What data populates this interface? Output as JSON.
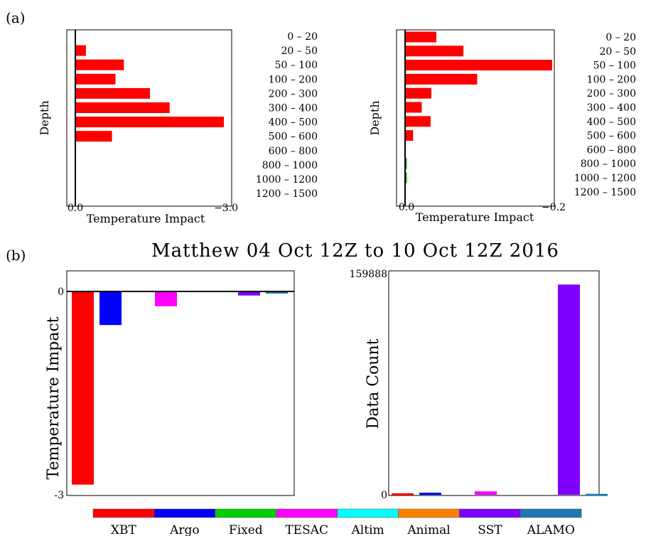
{
  "panel_labels": {
    "a": "(a)",
    "b": "(b)"
  },
  "title": "Matthew  04 Oct 12Z to 10 Oct 12Z 2016",
  "depth_bins": [
    "0 – 20",
    "20 – 50",
    "50 – 100",
    "100 – 200",
    "200 – 300",
    "300 – 400",
    "400 – 500",
    "500 – 600",
    "600 – 800",
    "800 – 1000",
    "1000 – 1200",
    "1200 – 1500"
  ],
  "colors": {
    "impact_bar": "#ff0000",
    "small_impact": "#00aa00",
    "XBT": "#ff0000",
    "Argo": "#0000ff",
    "Fixed": "#00cc00",
    "TESAC": "#ff00ff",
    "Altim": "#00ffff",
    "Animal": "#ff8000",
    "SST": "#8000ff",
    "ALAMO": "#1f77b4"
  },
  "legend": [
    "XBT",
    "Argo",
    "Fixed",
    "TESAC",
    "Altim",
    "Animal",
    "SST",
    "ALAMO"
  ],
  "chart_data": [
    {
      "type": "bar",
      "orientation": "horizontal",
      "ylabel": "Depth",
      "xlabel": "Temperature Impact",
      "xtick_labels": [
        "0.0",
        "−3.0"
      ],
      "xlim": [
        0.0,
        -3.0
      ],
      "categories": [
        "0 – 20",
        "20 – 50",
        "50 – 100",
        "100 – 200",
        "200 – 300",
        "300 – 400",
        "400 – 500",
        "500 – 600",
        "600 – 800",
        "800 – 1000",
        "1000 – 1200",
        "1200 – 1500"
      ],
      "values": [
        0.0,
        -0.2,
        -0.97,
        -0.8,
        -1.5,
        -1.9,
        -3.0,
        -0.73,
        0.0,
        0.0,
        0.0,
        0.0
      ]
    },
    {
      "type": "bar",
      "orientation": "horizontal",
      "ylabel": "Depth",
      "xlabel": "Temperature Impact",
      "xtick_labels": [
        "0.0",
        "−0.2"
      ],
      "xlim": [
        0.0,
        -0.2
      ],
      "categories": [
        "0 – 20",
        "20 – 50",
        "50 – 100",
        "100 – 200",
        "200 – 300",
        "300 – 400",
        "400 – 500",
        "500 – 600",
        "600 – 800",
        "800 – 1000",
        "1000 – 1200",
        "1200 – 1500"
      ],
      "values": [
        -0.042,
        -0.079,
        -0.201,
        -0.098,
        -0.035,
        -0.022,
        -0.034,
        -0.01,
        0.0,
        -0.001,
        -0.001,
        0.0
      ]
    },
    {
      "type": "bar",
      "ylabel": "Temperature Impact",
      "ytick_labels": [
        "0",
        "-3"
      ],
      "ylim": [
        -3,
        0
      ],
      "categories": [
        "XBT",
        "Argo",
        "Fixed",
        "TESAC",
        "Altim",
        "Animal",
        "SST",
        "ALAMO"
      ],
      "values": [
        -2.88,
        -0.5,
        0.0,
        -0.22,
        0.0,
        0.0,
        -0.06,
        -0.03
      ]
    },
    {
      "type": "bar",
      "ylabel": "Data Count",
      "ytick_labels": [
        "159888",
        "0"
      ],
      "ylim": [
        0,
        159888
      ],
      "categories": [
        "XBT",
        "Argo",
        "Fixed",
        "TESAC",
        "Altim",
        "Animal",
        "SST",
        "ALAMO"
      ],
      "values": [
        1100,
        1500,
        0,
        2500,
        0,
        0,
        153500,
        700
      ]
    }
  ]
}
